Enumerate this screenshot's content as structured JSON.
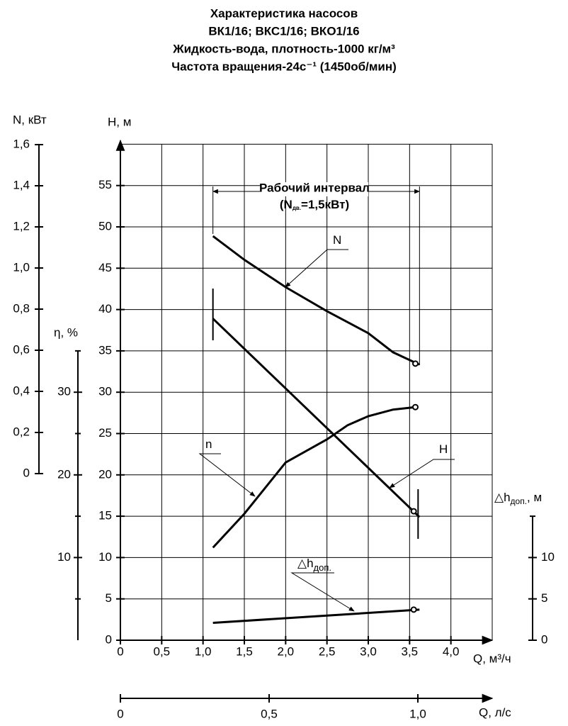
{
  "chart_data": {
    "type": "line",
    "title": [
      "Характеристика насосов",
      "ВК1/16; ВКС1/16; ВКО1/16",
      "Жидкость-вода, плотность-1000 кг/м³",
      "Частота вращения-24с⁻¹ (1450об/мин)"
    ],
    "x_label": "Q, м³/ч",
    "xlim": [
      0,
      4.5
    ],
    "xticks": [
      0,
      {
        "value": 0.5,
        "label": "0,5"
      },
      {
        "value": 1.0,
        "label": "1,0"
      },
      {
        "value": 1.5,
        "label": "1,5"
      },
      {
        "value": 2.0,
        "label": "2,0"
      },
      {
        "value": 2.5,
        "label": "2,5"
      },
      {
        "value": 3.0,
        "label": "3,0"
      },
      {
        "value": 3.5,
        "label": "3,5"
      },
      {
        "value": 4.0,
        "label": "4,0"
      }
    ],
    "x2_label": "Q, л/с",
    "x2lim": [
      0,
      1.25
    ],
    "x2ticks": [
      0,
      {
        "value": 0.5,
        "label": "0,5"
      },
      {
        "value": 1.0,
        "label": "1,0"
      }
    ],
    "grid": true,
    "axes": {
      "H": {
        "label": "H, м",
        "ylim": [
          0,
          60
        ],
        "yticks": [
          0,
          5,
          10,
          15,
          20,
          25,
          30,
          35,
          40,
          45,
          50,
          55
        ]
      },
      "N": {
        "label": "N, кВт",
        "ylim": [
          0,
          1.6
        ],
        "yticks": [
          0,
          {
            "value": 0.2,
            "label": "0,2"
          },
          {
            "value": 0.4,
            "label": "0,4"
          },
          {
            "value": 0.6,
            "label": "0,6"
          },
          {
            "value": 0.8,
            "label": "0,8"
          },
          {
            "value": 1.0,
            "label": "1,0"
          },
          {
            "value": 1.2,
            "label": "1,2"
          },
          {
            "value": 1.4,
            "label": "1,4"
          },
          {
            "value": 1.6,
            "label": "1,6"
          }
        ]
      },
      "eta": {
        "label": "η, %",
        "ylim": [
          0,
          35
        ],
        "yticks": [
          10,
          20,
          30
        ],
        "minor_ticks": [
          5,
          15,
          25,
          35
        ]
      },
      "dh": {
        "label": "△h",
        "label_sub": "доп.",
        "label_unit": ", м",
        "ylim": [
          0,
          15
        ],
        "yticks": [
          0,
          5,
          10
        ],
        "minor_ticks": [
          15
        ]
      }
    },
    "series": [
      {
        "name": "N",
        "axis": "N",
        "color": "#000000",
        "x": [
          1.12,
          1.5,
          2.0,
          2.5,
          3.0,
          3.3,
          3.62
        ],
        "values": [
          1.155,
          1.04,
          0.907,
          0.79,
          0.683,
          0.59,
          0.53
        ],
        "marker": {
          "x": 3.57,
          "value": 0.535
        }
      },
      {
        "name": "H",
        "axis": "H",
        "color": "#000000",
        "x": [
          1.12,
          3.62
        ],
        "values": [
          38.9,
          14.9
        ],
        "marker": {
          "x": 3.55,
          "value": 15.6
        }
      },
      {
        "name": "n",
        "axis": "eta",
        "color": "#000000",
        "x": [
          1.12,
          1.5,
          2.0,
          2.5,
          2.75,
          3.0,
          3.3,
          3.57
        ],
        "values": [
          11.2,
          15.3,
          21.5,
          24.3,
          26.0,
          27.1,
          27.9,
          28.2
        ],
        "marker": {
          "x": 3.57,
          "value": 28.2
        }
      },
      {
        "name": "△h",
        "name_sub": "доп.",
        "axis": "dh",
        "color": "#000000",
        "x": [
          1.12,
          3.62
        ],
        "values": [
          2.1,
          3.7
        ],
        "marker": {
          "x": 3.55,
          "value": 3.7
        }
      }
    ],
    "working_interval": {
      "from": 1.12,
      "to": 3.62,
      "label": "Рабочий интервал",
      "note_open": "(N",
      "note_sub": "дв.",
      "note_close": "=1,5кВт)"
    }
  }
}
